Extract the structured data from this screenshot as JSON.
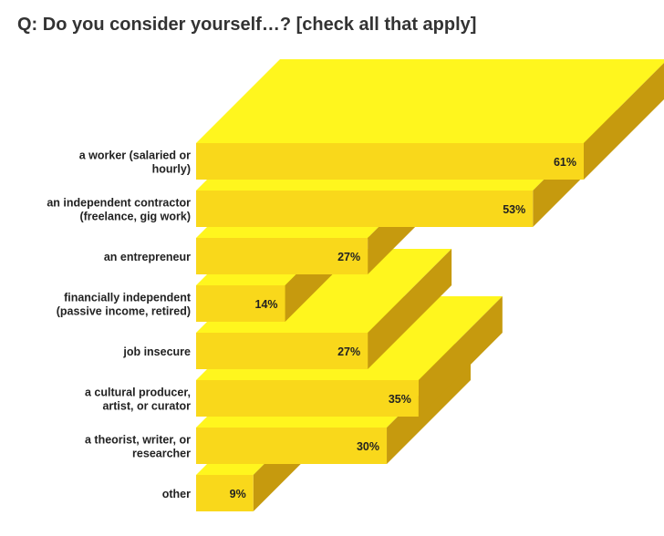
{
  "title": "Q: Do you consider yourself…? [check all that apply]",
  "colors": {
    "front": "#F9D81B",
    "top": "#FFF61E",
    "side": "#C69A0E",
    "text": "#222222"
  },
  "chart_data": {
    "type": "bar",
    "orientation": "horizontal",
    "style": "3d",
    "title": "Q: Do you consider yourself…? [check all that apply]",
    "unit": "%",
    "categories": [
      [
        "a worker (salaried or",
        "hourly)"
      ],
      [
        "an independent contractor",
        "(freelance, gig work)"
      ],
      [
        "an entrepreneur"
      ],
      [
        "financially independent",
        "(passive income, retired)"
      ],
      [
        "job insecure"
      ],
      [
        "a cultural producer,",
        "artist, or curator"
      ],
      [
        "a theorist, writer, or",
        "researcher"
      ],
      [
        "other"
      ]
    ],
    "values": [
      61,
      53,
      27,
      14,
      27,
      35,
      30,
      9
    ],
    "value_labels": [
      "61%",
      "53%",
      "27%",
      "14%",
      "27%",
      "35%",
      "30%",
      "9%"
    ],
    "xlim": [
      0,
      61
    ],
    "grid": false,
    "legend": "none"
  }
}
